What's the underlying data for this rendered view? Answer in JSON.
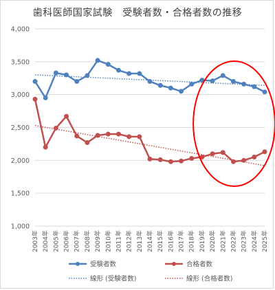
{
  "chart_data": {
    "type": "line",
    "title": "歯科医師国家試験　受験者数・合格者数の推移",
    "categories": [
      "2003年",
      "2004年",
      "2005年",
      "2006年",
      "2007年",
      "2008年",
      "2009年",
      "2010年",
      "2011年",
      "2012年",
      "2013年",
      "2014年",
      "2015年",
      "2016年",
      "2017年",
      "2018年",
      "2019年",
      "2020年",
      "2021年",
      "2022年",
      "2023年",
      "2024年",
      "2025年"
    ],
    "ylim": [
      1000,
      4000
    ],
    "yticks": [
      "1,000",
      "1,500",
      "2,000",
      "2,500",
      "3,000",
      "3,500",
      "4,000"
    ],
    "ytick_values": [
      1000,
      1500,
      2000,
      2500,
      3000,
      3500,
      4000
    ],
    "grid": true,
    "legend_position": "bottom",
    "series": [
      {
        "name": "受験者数",
        "color": "#4f81bd",
        "values": [
          3200,
          2950,
          3330,
          3300,
          3200,
          3290,
          3520,
          3460,
          3370,
          3320,
          3320,
          3200,
          3140,
          3100,
          3050,
          3160,
          3220,
          3210,
          3290,
          3200,
          3160,
          3120,
          3040
        ]
      },
      {
        "name": "合格者数",
        "color": "#c0504d",
        "values": [
          2930,
          2200,
          2490,
          2670,
          2370,
          2270,
          2380,
          2400,
          2400,
          2360,
          2360,
          2020,
          2010,
          1980,
          1990,
          2030,
          2050,
          2100,
          2120,
          1980,
          2000,
          2050,
          2130
        ]
      }
    ],
    "trendlines": [
      {
        "name": "線形 (受験者数)",
        "color": "#4f81bd",
        "start": 3300,
        "end": 3140
      },
      {
        "name": "線形 (合格者数)",
        "color": "#c0504d",
        "start": 2530,
        "end": 1920
      }
    ],
    "annotation": {
      "type": "ellipse",
      "color": "#ff0000",
      "from_category": "2020年",
      "to_category": "2025年"
    }
  }
}
